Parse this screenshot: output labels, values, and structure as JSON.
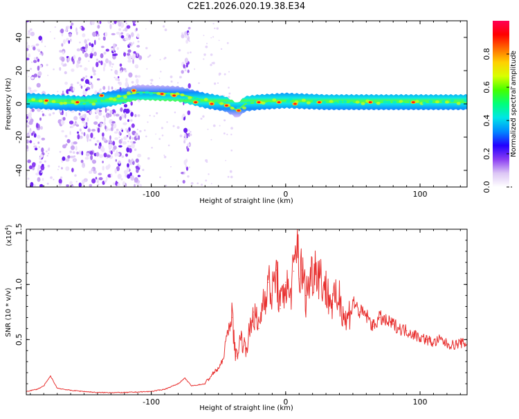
{
  "title": "C2E1.2026.020.19.38.E34",
  "chart_data": [
    {
      "type": "heatmap",
      "name": "spectrogram",
      "xlabel": "Height of straight line (km)",
      "ylabel": "Frequency (Hz)",
      "xlim": [
        -193,
        135
      ],
      "ylim": [
        -50,
        50
      ],
      "xticks": [
        {
          "v": -100,
          "label": "-100"
        },
        {
          "v": 0,
          "label": "0"
        },
        {
          "v": 100,
          "label": "100"
        }
      ],
      "yticks": [
        {
          "v": -40,
          "label": "-40"
        },
        {
          "v": -20,
          "label": "-20"
        },
        {
          "v": 0,
          "label": "0"
        },
        {
          "v": 20,
          "label": "20"
        },
        {
          "v": 40,
          "label": "40"
        }
      ],
      "band_center": [
        [
          -193,
          2
        ],
        [
          -150,
          0
        ],
        [
          -125,
          4
        ],
        [
          -110,
          7
        ],
        [
          -80,
          6
        ],
        [
          -60,
          2
        ],
        [
          -45,
          0
        ],
        [
          -36,
          -4
        ],
        [
          -30,
          0
        ],
        [
          -20,
          1
        ],
        [
          0,
          2
        ],
        [
          30,
          1
        ],
        [
          135,
          1
        ]
      ],
      "noise_regions": [
        [
          -193,
          -180
        ],
        [
          -168,
          -108
        ],
        [
          -77,
          -71
        ]
      ],
      "hotspots": [
        [
          -178,
          2
        ],
        [
          -155,
          1
        ],
        [
          -137,
          5
        ],
        [
          -113,
          8
        ],
        [
          -92,
          6
        ],
        [
          -83,
          5
        ],
        [
          -67,
          1
        ],
        [
          -55,
          0
        ],
        [
          -44,
          -1
        ],
        [
          -35,
          -4
        ],
        [
          -20,
          1
        ],
        [
          -5,
          1
        ],
        [
          7,
          0
        ],
        [
          25,
          1
        ],
        [
          63,
          1
        ],
        [
          95,
          1
        ]
      ],
      "colorbar": {
        "label": "Normalized spectral amplitude",
        "range": [
          0,
          1
        ],
        "ticks": [
          {
            "v": 0.0,
            "label": "0.0"
          },
          {
            "v": 0.2,
            "label": "0.2"
          },
          {
            "v": 0.4,
            "label": "0.4"
          },
          {
            "v": 0.6,
            "label": "0.6"
          },
          {
            "v": 0.8,
            "label": "0.8"
          }
        ],
        "colors": [
          "#ffffff",
          "#dcc6f5",
          "#8a3df2",
          "#2200ff",
          "#0088ff",
          "#00e6e6",
          "#00ff7a",
          "#44ff00",
          "#d8ff00",
          "#ffd000",
          "#ff6a00",
          "#ff0000",
          "#ff0055"
        ]
      }
    },
    {
      "type": "line",
      "name": "snr",
      "xlabel": "Height of straight line (km)",
      "ylabel": "SNR (10 * v/v)",
      "multiplier": "(x10",
      "multiplier_exp": "4",
      "multiplier_close": ")",
      "xlim": [
        -193,
        135
      ],
      "ylim": [
        0,
        1.5
      ],
      "xticks": [
        {
          "v": -100,
          "label": "-100"
        },
        {
          "v": 0,
          "label": "0"
        },
        {
          "v": 100,
          "label": "100"
        }
      ],
      "yticks": [
        {
          "v": 0.5,
          "label": "0.5"
        },
        {
          "v": 1.0,
          "label": "1.0"
        },
        {
          "v": 1.5,
          "label": "1.5"
        }
      ],
      "color": "#e8302f",
      "series": [
        {
          "name": "SNR",
          "x": [
            -193,
            -185,
            -180,
            -175,
            -170,
            -160,
            -150,
            -140,
            -120,
            -100,
            -90,
            -80,
            -75,
            -70,
            -65,
            -60,
            -55,
            -50,
            -47,
            -43,
            -40,
            -37,
            -33,
            -30,
            -27,
            -24,
            -20,
            -17,
            -13,
            -10,
            -7,
            -4,
            0,
            3,
            6,
            8,
            9,
            10,
            12,
            15,
            18,
            22,
            25,
            30,
            35,
            40,
            45,
            50,
            55,
            60,
            65,
            70,
            75,
            80,
            85,
            90,
            95,
            100,
            105,
            110,
            115,
            120,
            125,
            130,
            135
          ],
          "y": [
            0.03,
            0.05,
            0.08,
            0.17,
            0.06,
            0.04,
            0.03,
            0.02,
            0.02,
            0.03,
            0.05,
            0.1,
            0.15,
            0.08,
            0.09,
            0.1,
            0.18,
            0.24,
            0.3,
            0.58,
            0.7,
            0.35,
            0.52,
            0.42,
            0.55,
            0.75,
            0.6,
            0.85,
            1.02,
            0.9,
            1.13,
            0.78,
            1.02,
            0.88,
            1.12,
            1.25,
            1.5,
            1.05,
            1.13,
            0.9,
            1.05,
            1.18,
            1.1,
            0.95,
            0.82,
            0.9,
            0.65,
            0.85,
            0.75,
            0.72,
            0.62,
            0.7,
            0.66,
            0.64,
            0.6,
            0.58,
            0.55,
            0.52,
            0.5,
            0.47,
            0.5,
            0.46,
            0.45,
            0.47,
            0.46
          ]
        }
      ]
    }
  ]
}
